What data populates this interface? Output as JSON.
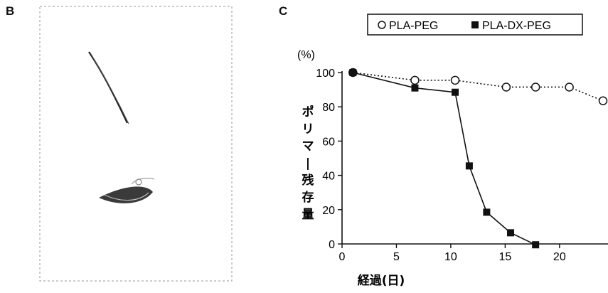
{
  "panels": {
    "b_label": "B",
    "c_label": "C"
  },
  "chart_data": {
    "type": "line",
    "ylabel": "ポリマー残存量",
    "yunit": "(%)",
    "xlabel": "経過(日)",
    "xticks": [
      0,
      5,
      10,
      15,
      20
    ],
    "yticks": [
      0,
      20,
      40,
      60,
      80,
      100
    ],
    "xlim": [
      0,
      24
    ],
    "ylim": [
      0,
      100
    ],
    "grid": false,
    "legend_position": "top",
    "series": [
      {
        "name": "PLA-PEG",
        "marker": "open-circle",
        "line_style": "dotted",
        "color": "#111111",
        "x": [
          1,
          6.7,
          10.4,
          15.1,
          17.8,
          20.9,
          24
        ],
        "y": [
          100,
          95.5,
          95.5,
          91.5,
          91.5,
          91.5,
          83.5
        ]
      },
      {
        "name": "PLA-DX-PEG",
        "marker": "filled-square",
        "line_style": "solid",
        "color": "#111111",
        "x": [
          1,
          6.7,
          10.4,
          11.7,
          13.3,
          15.5,
          17.8
        ],
        "y": [
          100,
          91,
          88.5,
          45.5,
          18.5,
          6.5,
          -0.5
        ]
      }
    ]
  }
}
